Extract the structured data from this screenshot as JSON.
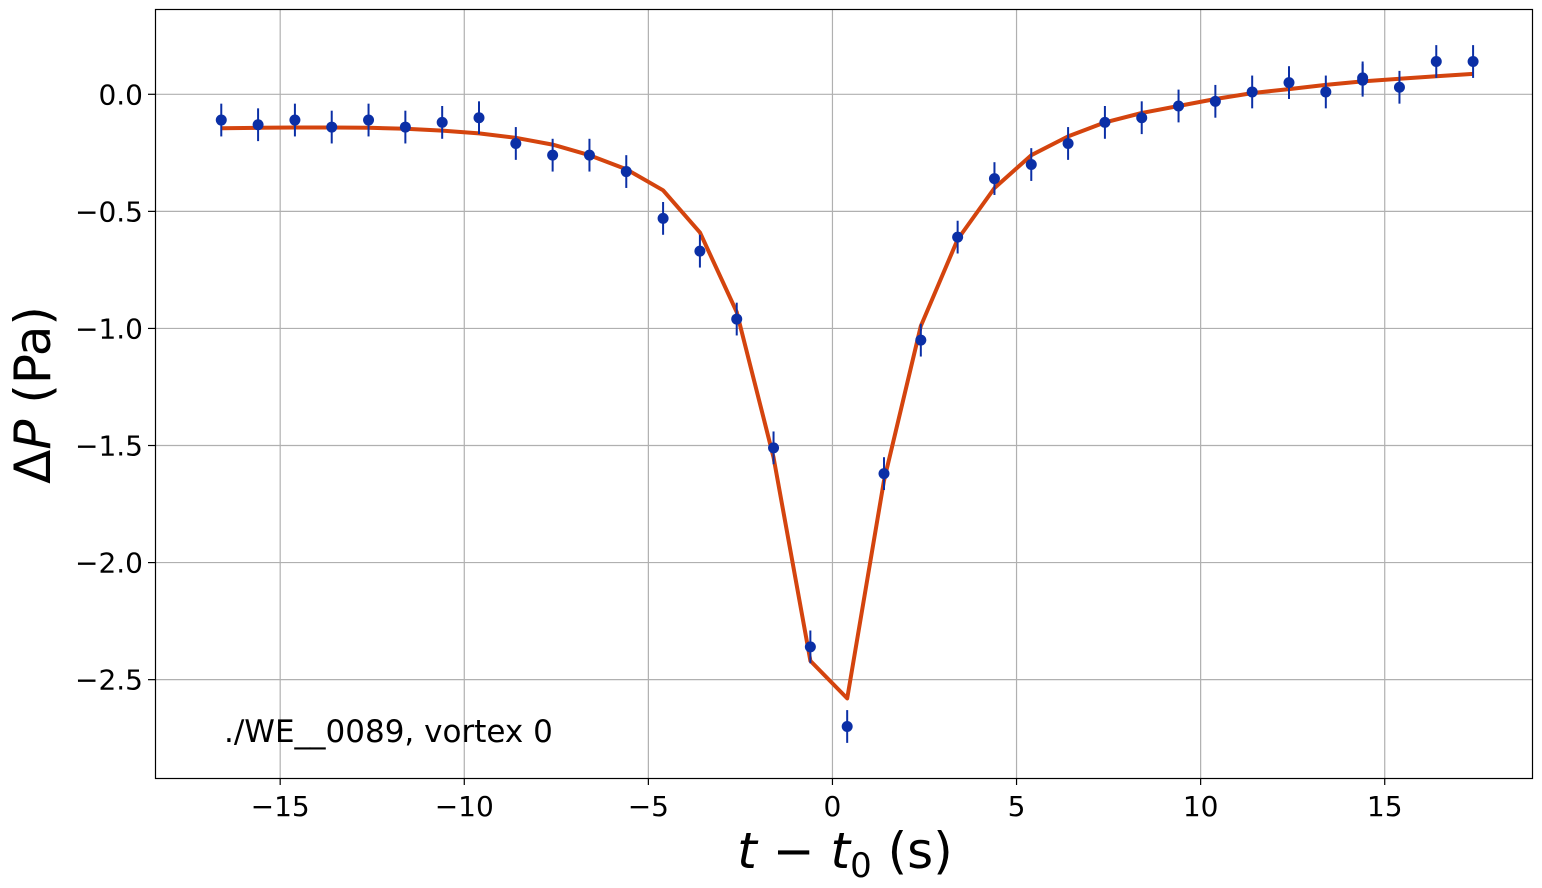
{
  "chart_data": {
    "type": "scatter",
    "xlabel": "t − t0 (s)",
    "ylabel": "ΔP (Pa)",
    "annotation": "./WE__0089, vortex 0",
    "xlim": [
      -18.4,
      19.0
    ],
    "ylim": [
      -2.92,
      0.36
    ],
    "xticks": [
      -15,
      -10,
      -5,
      0,
      5,
      10,
      15
    ],
    "xtick_labels": [
      "−15",
      "−10",
      "−5",
      "0",
      "5",
      "10",
      "15"
    ],
    "yticks": [
      0.0,
      -0.5,
      -1.0,
      -1.5,
      -2.0,
      -2.5
    ],
    "ytick_labels": [
      "0.0",
      "−0.5",
      "−1.0",
      "−1.5",
      "−2.0",
      "−2.5"
    ],
    "grid": true,
    "series": [
      {
        "kind": "errorbar",
        "color": "#0b2fa6",
        "x": [
          -16.6,
          -15.6,
          -14.6,
          -13.6,
          -12.6,
          -11.6,
          -10.6,
          -9.6,
          -8.6,
          -7.6,
          -6.6,
          -5.6,
          -4.6,
          -3.6,
          -2.6,
          -1.6,
          -0.6,
          0.4,
          1.4,
          2.4,
          3.4,
          4.4,
          5.4,
          6.4,
          7.4,
          8.4,
          9.4,
          10.4,
          11.4,
          12.4,
          13.4,
          14.4,
          14.4,
          15.4,
          16.4,
          17.4
        ],
        "y": [
          -0.11,
          -0.13,
          -0.11,
          -0.14,
          -0.11,
          -0.14,
          -0.12,
          -0.1,
          -0.21,
          -0.26,
          -0.26,
          -0.33,
          -0.53,
          -0.67,
          -0.96,
          -1.51,
          -2.36,
          -2.7,
          -1.62,
          -1.05,
          -0.61,
          -0.36,
          -0.3,
          -0.21,
          -0.12,
          -0.1,
          -0.05,
          -0.03,
          0.01,
          0.05,
          0.01,
          0.06,
          0.07,
          0.03,
          0.14,
          0.14
        ],
        "yerr": 0.07
      },
      {
        "kind": "line",
        "color": "#d4440e",
        "x": [
          -16.6,
          -15.6,
          -14.6,
          -13.6,
          -12.6,
          -11.6,
          -10.6,
          -9.6,
          -8.6,
          -7.6,
          -6.6,
          -5.6,
          -4.6,
          -3.6,
          -2.6,
          -1.6,
          -0.6,
          0.4,
          1.4,
          2.4,
          3.4,
          4.4,
          5.4,
          6.4,
          7.4,
          8.4,
          9.4,
          10.4,
          11.4,
          12.4,
          13.4,
          14.4,
          15.4,
          16.4,
          17.4
        ],
        "y": [
          -0.145,
          -0.143,
          -0.142,
          -0.142,
          -0.143,
          -0.147,
          -0.155,
          -0.167,
          -0.186,
          -0.215,
          -0.26,
          -0.32,
          -0.41,
          -0.59,
          -0.93,
          -1.55,
          -2.42,
          -2.58,
          -1.65,
          -0.99,
          -0.62,
          -0.4,
          -0.26,
          -0.18,
          -0.12,
          -0.08,
          -0.05,
          -0.02,
          0.005,
          0.022,
          0.04,
          0.055,
          0.066,
          0.077,
          0.087
        ]
      }
    ]
  }
}
